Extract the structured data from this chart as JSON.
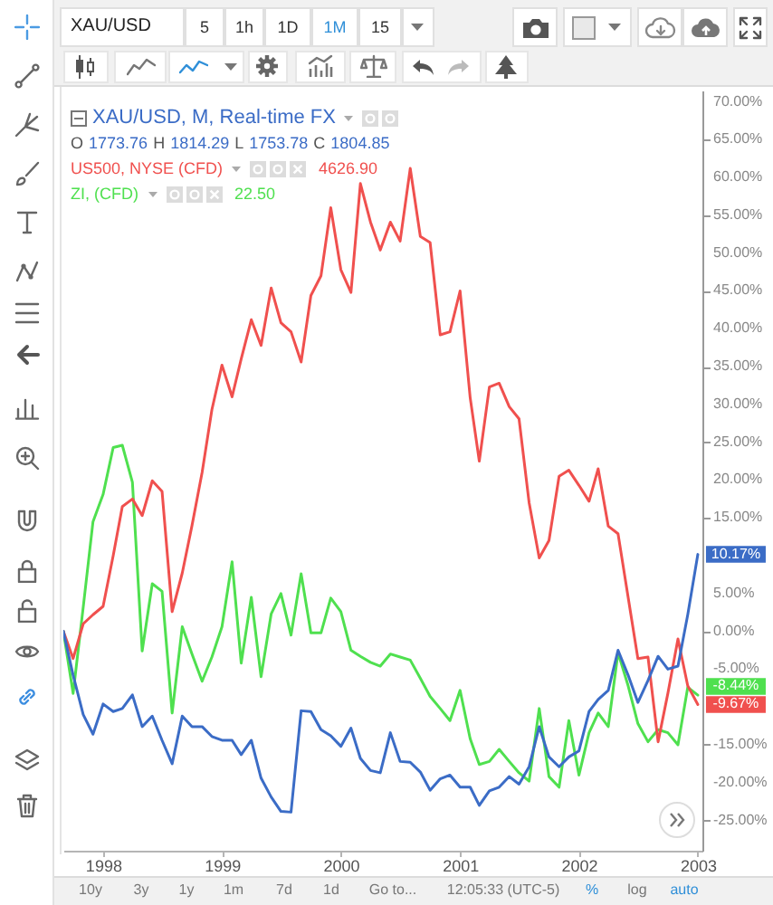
{
  "chart_data": {
    "type": "line",
    "title": "XAU/USD",
    "legend": "top left",
    "x": [
      "1997-09",
      "1997-10",
      "1997-11",
      "1997-12",
      "1998-01",
      "1998-02",
      "1998-03",
      "1998-04",
      "1998-05",
      "1998-06",
      "1998-07",
      "1998-08",
      "1998-09",
      "1998-10",
      "1998-11",
      "1998-12",
      "1999-01",
      "1999-02",
      "1999-03",
      "1999-04",
      "1999-05",
      "1999-06",
      "1999-07",
      "1999-08",
      "1999-09",
      "1999-10",
      "1999-11",
      "1999-12",
      "2000-01",
      "2000-02",
      "2000-03",
      "2000-04",
      "2000-05",
      "2000-06",
      "2000-07",
      "2000-08",
      "2000-09",
      "2000-10",
      "2000-11",
      "2000-12",
      "2001-01",
      "2001-02",
      "2001-03",
      "2001-04",
      "2001-05",
      "2001-06",
      "2001-07",
      "2001-08",
      "2001-09",
      "2001-10",
      "2001-11",
      "2001-12",
      "2002-01",
      "2002-02",
      "2002-03",
      "2002-04",
      "2002-05",
      "2002-06",
      "2002-07",
      "2002-08",
      "2002-09",
      "2002-10",
      "2002-11",
      "2002-12",
      "2003-01"
    ],
    "xlim": [
      "1997-09-01",
      "2003-01-15"
    ],
    "xticks": [
      "1998",
      "1999",
      "2000",
      "2001",
      "2002",
      "2003"
    ],
    "ylim": [
      -29,
      71.5
    ],
    "yticks": [
      {
        "value": 70,
        "label": "70.00%"
      },
      {
        "value": 65,
        "label": "65.00%"
      },
      {
        "value": 60,
        "label": "60.00%"
      },
      {
        "value": 55,
        "label": "55.00%"
      },
      {
        "value": 50,
        "label": "50.00%"
      },
      {
        "value": 45,
        "label": "45.00%"
      },
      {
        "value": 40,
        "label": "40.00%"
      },
      {
        "value": 35,
        "label": "35.00%"
      },
      {
        "value": 30,
        "label": "30.00%"
      },
      {
        "value": 25,
        "label": "25.00%"
      },
      {
        "value": 20,
        "label": "20.00%"
      },
      {
        "value": 15,
        "label": "15.00%"
      },
      {
        "value": 5,
        "label": "5.00%"
      },
      {
        "value": 0,
        "label": "0.00%"
      },
      {
        "value": -5,
        "label": "-5.00%"
      },
      {
        "value": -15,
        "label": "-15.00%"
      },
      {
        "value": -20,
        "label": "-20.00%"
      },
      {
        "value": -25,
        "label": "-25.00%"
      }
    ],
    "series": [
      {
        "name": "XAU/USD, M, Real-time FX",
        "color": "#3b6cc6",
        "values": [
          0,
          -5.8,
          -11.0,
          -13.6,
          -9.6,
          -10.6,
          -10.2,
          -8.4,
          -12.6,
          -11.2,
          -14.4,
          -17.5,
          -11.2,
          -12.6,
          -12.6,
          -13.9,
          -14.4,
          -14.4,
          -16.3,
          -14.4,
          -19.4,
          -21.9,
          -23.8,
          -23.9,
          -10.5,
          -10.6,
          -13.0,
          -13.8,
          -15.2,
          -12.8,
          -16.8,
          -18.4,
          -18.7,
          -13.4,
          -17.2,
          -17.3,
          -18.6,
          -21.0,
          -19.5,
          -19.0,
          -20.6,
          -20.6,
          -23.0,
          -21.1,
          -20.6,
          -19.2,
          -20.2,
          -17.9,
          -12.6,
          -16.6,
          -17.9,
          -16.6,
          -15.8,
          -10.6,
          -9.0,
          -7.8,
          -2.5,
          -5.8,
          -9.4,
          -6.5,
          -3.3,
          -5.0,
          -4.6,
          2.2,
          10.17
        ],
        "value_labels": [
          null,
          null,
          null,
          null,
          null,
          null,
          null,
          null,
          null,
          null,
          null,
          null,
          null,
          null,
          null,
          null,
          null,
          null,
          null,
          null,
          null,
          null,
          null,
          null,
          null,
          null,
          null,
          null,
          null,
          null,
          null,
          null,
          null,
          null,
          null,
          null,
          null,
          null,
          null,
          null,
          null,
          null,
          null,
          null,
          null,
          null,
          null,
          null,
          null,
          null,
          null,
          null,
          null,
          null,
          null,
          null,
          null,
          null,
          null,
          null,
          null,
          null,
          null,
          null,
          "10.17%"
        ]
      },
      {
        "name": "US500, NYSE (CFD)",
        "color": "#f0504e",
        "values": [
          0,
          -3.6,
          1.0,
          2.2,
          3.3,
          10,
          16.5,
          17.5,
          15.3,
          19.9,
          18.5,
          2.6,
          7.7,
          14,
          21,
          29.3,
          35.2,
          31.0,
          36,
          41.2,
          37.8,
          45.4,
          40.8,
          39.6,
          35.6,
          44.4,
          47.0,
          56.0,
          47.8,
          44.8,
          59.2,
          54.1,
          50.4,
          54.1,
          51.6,
          61.2,
          52.2,
          51.4,
          39.2,
          39.6,
          45.0,
          30.9,
          22.5,
          32.3,
          32.8,
          29.7,
          28.1,
          17,
          9.7,
          12.0,
          20.5,
          21.3,
          19.3,
          17.2,
          21.5,
          13.9,
          12.9,
          4.5,
          -3.6,
          -3.4,
          -14.6,
          -8.2,
          -1.0,
          -7.2,
          -9.67
        ],
        "value_labels": [
          null,
          null,
          null,
          null,
          null,
          null,
          null,
          null,
          null,
          null,
          null,
          null,
          null,
          null,
          null,
          null,
          null,
          null,
          null,
          null,
          null,
          null,
          null,
          null,
          null,
          null,
          null,
          null,
          null,
          null,
          null,
          null,
          null,
          null,
          null,
          null,
          null,
          null,
          null,
          null,
          null,
          null,
          null,
          null,
          null,
          null,
          null,
          null,
          null,
          null,
          null,
          null,
          null,
          null,
          null,
          null,
          null,
          null,
          null,
          null,
          null,
          null,
          null,
          null,
          "-9.67%"
        ]
      },
      {
        "name": "ZI, (CFD)",
        "color": "#4fe04f",
        "values": [
          0,
          -8.2,
          3.2,
          14.5,
          18.1,
          24.3,
          24.6,
          19.7,
          -2.6,
          6.3,
          5.3,
          -10.8,
          0.6,
          -3.0,
          -6.6,
          -3.4,
          0.6,
          9.2,
          -4.2,
          4.5,
          -6.0,
          2.3,
          5.0,
          -0.5,
          7.6,
          -0.2,
          -0.2,
          4.4,
          2.6,
          -2.5,
          -3.3,
          -4.1,
          -4.6,
          -3.0,
          -3.4,
          -3.8,
          -6.2,
          -8.6,
          -10.2,
          -11.8,
          -7.8,
          -14.2,
          -17.6,
          -17.2,
          -15.6,
          -17.2,
          -18.7,
          -19.8,
          -10.2,
          -19.2,
          -20.6,
          -11.8,
          -19.0,
          -13.4,
          -10.8,
          -12.6,
          -2.8,
          -7.2,
          -12.2,
          -14.6,
          -13.0,
          -13.4,
          -15.0,
          -7.4,
          -8.44
        ],
        "value_labels": [
          null,
          null,
          null,
          null,
          null,
          null,
          null,
          null,
          null,
          null,
          null,
          null,
          null,
          null,
          null,
          null,
          null,
          null,
          null,
          null,
          null,
          null,
          null,
          null,
          null,
          null,
          null,
          null,
          null,
          null,
          null,
          null,
          null,
          null,
          null,
          null,
          null,
          null,
          null,
          null,
          null,
          null,
          null,
          null,
          null,
          null,
          null,
          null,
          null,
          null,
          null,
          null,
          null,
          null,
          null,
          null,
          null,
          null,
          null,
          null,
          null,
          null,
          null,
          null,
          "-8.44%"
        ]
      }
    ],
    "annotations": [
      "O 1773.76 H 1814.29 L 1753.78 C 1804.85",
      "4626.90",
      "22.50",
      "5",
      "1h",
      "1D",
      "1M",
      "15",
      "10y",
      "3y",
      "1y",
      "1m",
      "7d",
      "1d",
      "Go to...",
      "12:05:33 (UTC-5)",
      "%",
      "log",
      "auto"
    ]
  }
}
